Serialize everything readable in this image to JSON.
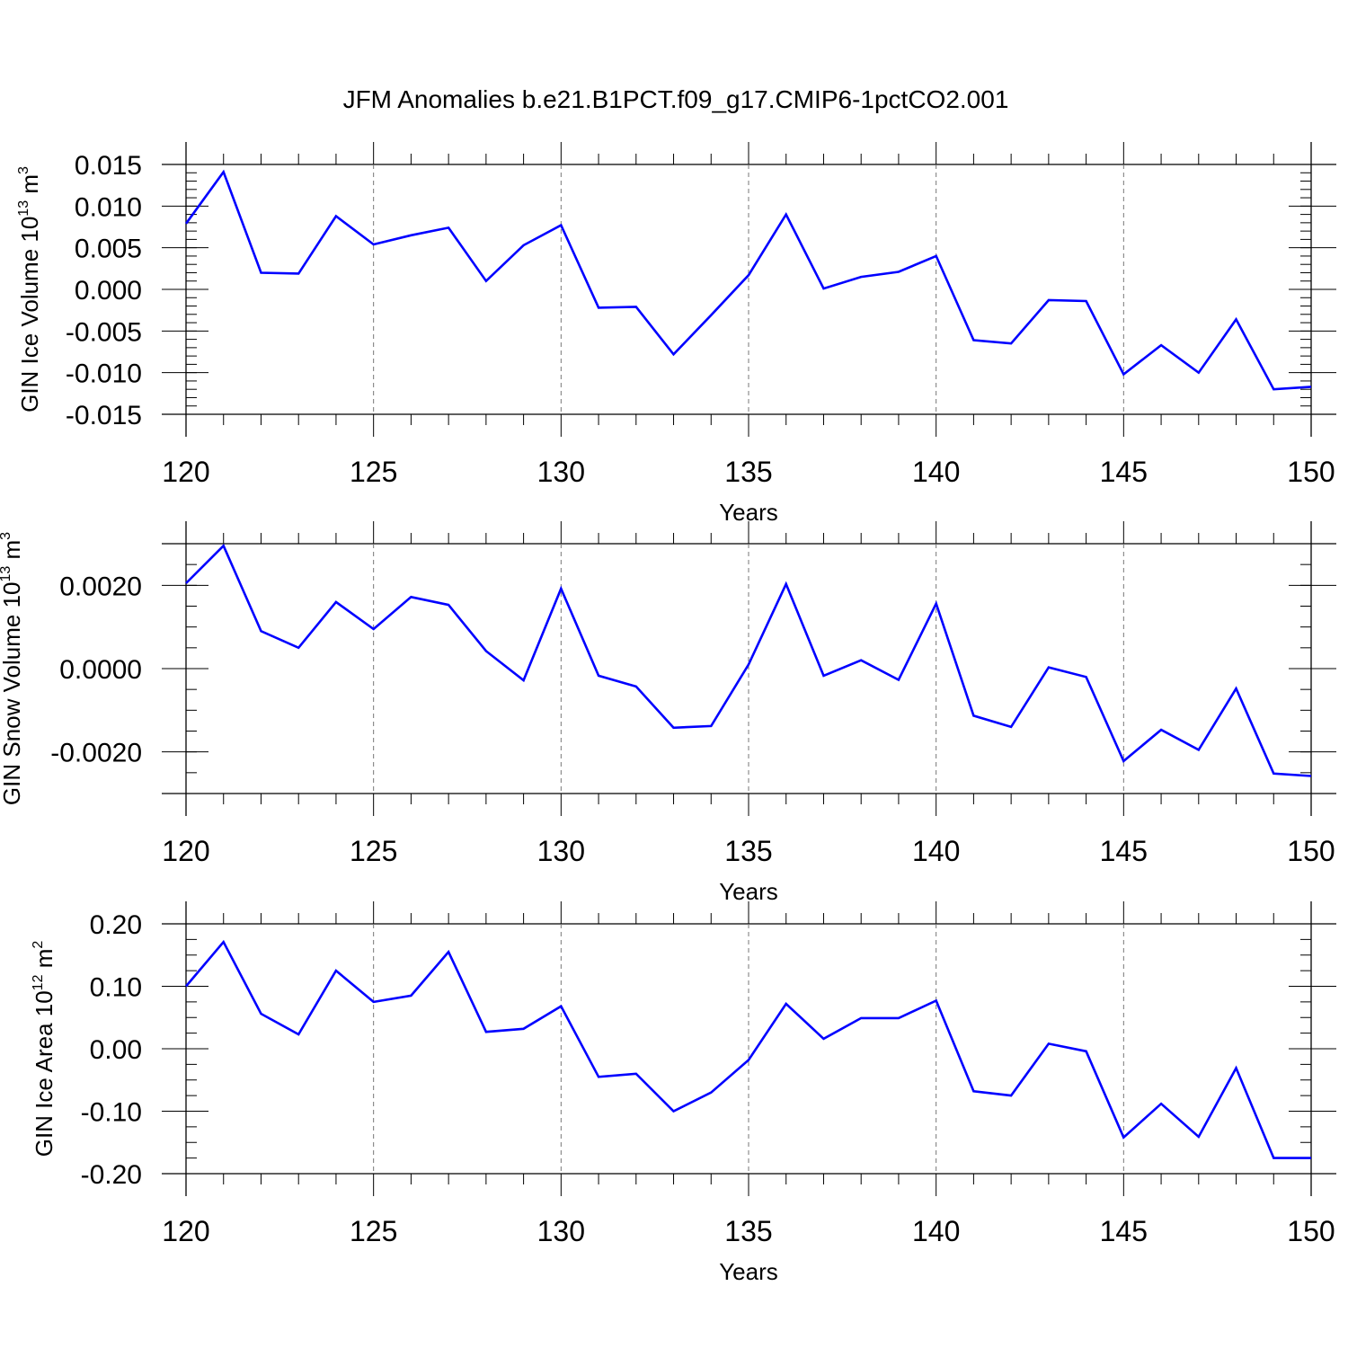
{
  "title": "JFM Anomalies b.e21.B1PCT.f09_g17.CMIP6-1pctCO2.001",
  "line_color": "#0000ff",
  "chart_data": [
    {
      "type": "line",
      "ylabel": "GIN Ice Volume 10",
      "ylabel_exp": "13",
      "ylabel_unit": " m",
      "ylabel_unit_exp": "3",
      "xlabel": "Years",
      "xlim": [
        120,
        150
      ],
      "ylim": [
        -0.015,
        0.015
      ],
      "x_ticks": [
        "120",
        "125",
        "130",
        "135",
        "140",
        "145",
        "150"
      ],
      "y_ticks": [
        {
          "v": 0.015,
          "t": "0.015"
        },
        {
          "v": 0.01,
          "t": "0.010"
        },
        {
          "v": 0.005,
          "t": "0.005"
        },
        {
          "v": 0.0,
          "t": "0.000"
        },
        {
          "v": -0.005,
          "t": "-0.005"
        },
        {
          "v": -0.01,
          "t": "-0.010"
        },
        {
          "v": -0.015,
          "t": "-0.015"
        }
      ],
      "y_minor_step": 0.001,
      "x": [
        120,
        121,
        122,
        123,
        124,
        125,
        126,
        127,
        128,
        129,
        130,
        131,
        132,
        133,
        134,
        135,
        136,
        137,
        138,
        139,
        140,
        141,
        142,
        143,
        144,
        145,
        146,
        147,
        148,
        149,
        150
      ],
      "values": [
        0.0079,
        0.0141,
        0.002,
        0.0019,
        0.0088,
        0.0054,
        0.0065,
        0.0074,
        0.001,
        0.0053,
        0.0077,
        -0.0022,
        -0.0021,
        -0.0078,
        -0.0031,
        0.0017,
        0.009,
        0.0001,
        0.0015,
        0.0021,
        0.004,
        -0.0061,
        -0.0065,
        -0.0013,
        -0.0014,
        -0.0102,
        -0.0067,
        -0.01,
        -0.0036,
        -0.012,
        -0.0117
      ]
    },
    {
      "type": "line",
      "ylabel": "GIN Snow Volume 10",
      "ylabel_exp": "13",
      "ylabel_unit": " m",
      "ylabel_unit_exp": "3",
      "xlabel": "Years",
      "xlim": [
        120,
        150
      ],
      "ylim": [
        -0.003,
        0.003
      ],
      "x_ticks": [
        "120",
        "125",
        "130",
        "135",
        "140",
        "145",
        "150"
      ],
      "y_ticks": [
        {
          "v": 0.002,
          "t": "0.0020"
        },
        {
          "v": 0.0,
          "t": "0.0000"
        },
        {
          "v": -0.002,
          "t": "-0.0020"
        }
      ],
      "y_minor_step": 0.0005,
      "x": [
        120,
        121,
        122,
        123,
        124,
        125,
        126,
        127,
        128,
        129,
        130,
        131,
        132,
        133,
        134,
        135,
        136,
        137,
        138,
        139,
        140,
        141,
        142,
        143,
        144,
        145,
        146,
        147,
        148,
        149,
        150
      ],
      "values": [
        0.00205,
        0.00295,
        0.0009,
        0.0005,
        0.0016,
        0.00095,
        0.00172,
        0.00153,
        0.00042,
        -0.00028,
        0.00192,
        -0.00017,
        -0.00043,
        -0.00142,
        -0.00138,
        0.0001,
        0.00203,
        -0.00017,
        0.0002,
        -0.00027,
        0.00156,
        -0.00113,
        -0.0014,
        3e-05,
        -0.0002,
        -0.00222,
        -0.00147,
        -0.00195,
        -0.00048,
        -0.00252,
        -0.00258
      ]
    },
    {
      "type": "line",
      "ylabel": "GIN Ice Area 10",
      "ylabel_exp": "12",
      "ylabel_unit": " m",
      "ylabel_unit_exp": "2",
      "xlabel": "Years",
      "xlim": [
        120,
        150
      ],
      "ylim": [
        -0.2,
        0.2
      ],
      "x_ticks": [
        "120",
        "125",
        "130",
        "135",
        "140",
        "145",
        "150"
      ],
      "y_ticks": [
        {
          "v": 0.2,
          "t": "0.20"
        },
        {
          "v": 0.1,
          "t": "0.10"
        },
        {
          "v": 0.0,
          "t": "0.00"
        },
        {
          "v": -0.1,
          "t": "-0.10"
        },
        {
          "v": -0.2,
          "t": "-0.20"
        }
      ],
      "y_minor_step": 0.025,
      "x": [
        120,
        121,
        122,
        123,
        124,
        125,
        126,
        127,
        128,
        129,
        130,
        131,
        132,
        133,
        134,
        135,
        136,
        137,
        138,
        139,
        140,
        141,
        142,
        143,
        144,
        145,
        146,
        147,
        148,
        149,
        150
      ],
      "values": [
        0.1,
        0.171,
        0.056,
        0.023,
        0.125,
        0.075,
        0.085,
        0.155,
        0.027,
        0.032,
        0.068,
        -0.045,
        -0.04,
        -0.1,
        -0.07,
        -0.018,
        0.072,
        0.016,
        0.049,
        0.049,
        0.077,
        -0.068,
        -0.075,
        0.008,
        -0.004,
        -0.142,
        -0.088,
        -0.141,
        -0.031,
        -0.175,
        -0.175
      ]
    }
  ]
}
